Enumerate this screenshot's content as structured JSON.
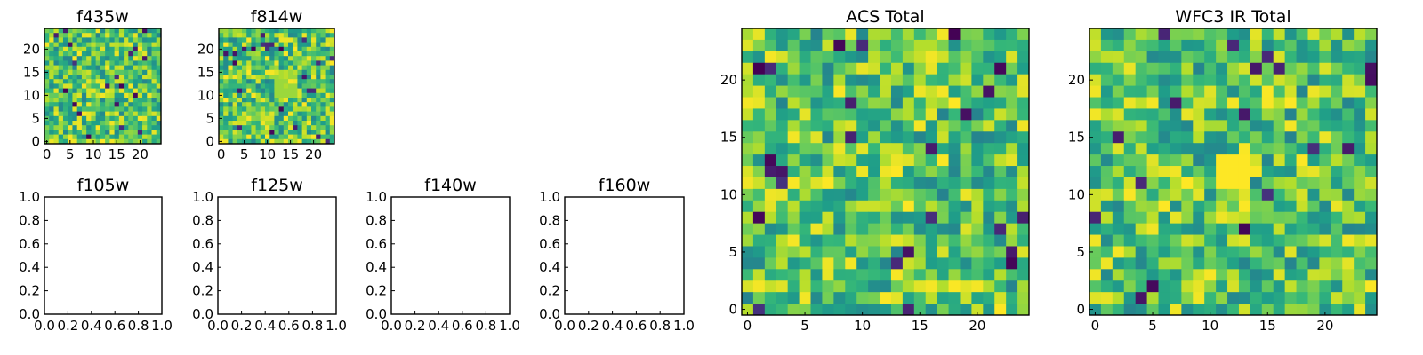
{
  "colors": {
    "colormap": "viridis",
    "viridis_dark": "#440154",
    "viridis_blue": "#3b528b",
    "viridis_teal": "#21918c",
    "viridis_green": "#5ec962",
    "viridis_yellow": "#fde725"
  },
  "chart_data": [
    {
      "type": "heatmap",
      "title": "f435w",
      "xlim": [
        -0.5,
        24.5
      ],
      "ylim": [
        -0.5,
        24.5
      ],
      "xticks": [
        0,
        5,
        10,
        15,
        20
      ],
      "yticks": [
        0,
        5,
        10,
        15,
        20
      ],
      "grid": false,
      "colormap": "viridis",
      "grid_size": 25,
      "z_approx": "random noise, mostly mid-to-high viridis values"
    },
    {
      "type": "heatmap",
      "title": "f814w",
      "xlim": [
        -0.5,
        24.5
      ],
      "ylim": [
        -0.5,
        24.5
      ],
      "xticks": [
        0,
        5,
        10,
        15,
        20
      ],
      "yticks": [
        0,
        5,
        10,
        15,
        20
      ],
      "grid": false,
      "colormap": "viridis",
      "grid_size": 25,
      "z_approx": "random noise with a brighter patch near the center"
    },
    {
      "type": "heatmap",
      "title": "ACS Total",
      "xlim": [
        -0.5,
        24.5
      ],
      "ylim": [
        -0.5,
        24.5
      ],
      "xticks": [
        0,
        5,
        10,
        15,
        20
      ],
      "yticks": [
        0,
        5,
        10,
        15,
        20
      ],
      "grid": false,
      "colormap": "viridis",
      "grid_size": 25,
      "z_approx": "random noise, mostly green-yellow with scattered dark pixels"
    },
    {
      "type": "heatmap",
      "title": "WFC3 IR Total",
      "xlim": [
        -0.5,
        24.5
      ],
      "ylim": [
        -0.5,
        24.5
      ],
      "xticks": [
        0,
        5,
        10,
        15,
        20
      ],
      "yticks": [
        0,
        5,
        10,
        15,
        20
      ],
      "grid": false,
      "colormap": "viridis",
      "grid_size": 25,
      "z_approx": "random noise with a bright yellow spot near x=12, y=12"
    },
    {
      "type": "scatter",
      "title": "f105w",
      "xlim": [
        0.0,
        1.0
      ],
      "ylim": [
        0.0,
        1.0
      ],
      "xticks": [
        "0.0",
        "0.2",
        "0.4",
        "0.6",
        "0.8",
        "1.0"
      ],
      "yticks": [
        "0.0",
        "0.2",
        "0.4",
        "0.6",
        "0.8",
        "1.0"
      ],
      "series": []
    },
    {
      "type": "scatter",
      "title": "f125w",
      "xlim": [
        0.0,
        1.0
      ],
      "ylim": [
        0.0,
        1.0
      ],
      "xticks": [
        "0.0",
        "0.2",
        "0.4",
        "0.6",
        "0.8",
        "1.0"
      ],
      "yticks": [
        "0.0",
        "0.2",
        "0.4",
        "0.6",
        "0.8",
        "1.0"
      ],
      "series": []
    },
    {
      "type": "scatter",
      "title": "f140w",
      "xlim": [
        0.0,
        1.0
      ],
      "ylim": [
        0.0,
        1.0
      ],
      "xticks": [
        "0.0",
        "0.2",
        "0.4",
        "0.6",
        "0.8",
        "1.0"
      ],
      "yticks": [
        "0.0",
        "0.2",
        "0.4",
        "0.6",
        "0.8",
        "1.0"
      ],
      "series": []
    },
    {
      "type": "scatter",
      "title": "f160w",
      "xlim": [
        0.0,
        1.0
      ],
      "ylim": [
        0.0,
        1.0
      ],
      "xticks": [
        "0.0",
        "0.2",
        "0.4",
        "0.6",
        "0.8",
        "1.0"
      ],
      "yticks": [
        "0.0",
        "0.2",
        "0.4",
        "0.6",
        "0.8",
        "1.0"
      ],
      "series": []
    }
  ]
}
